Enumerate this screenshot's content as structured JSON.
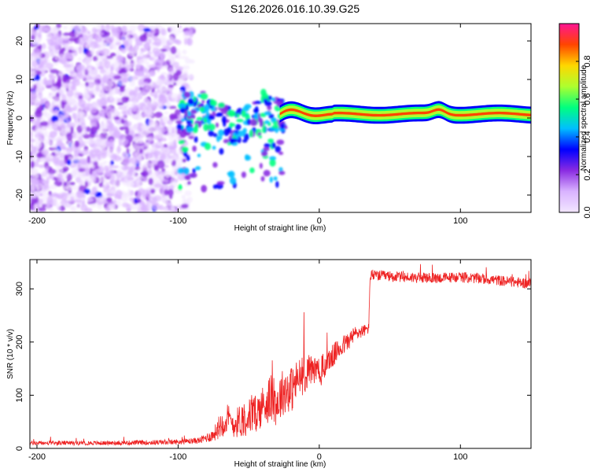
{
  "chart_data": [
    {
      "type": "heatmap",
      "title": "S126.2026.016.10.39.G25",
      "xlabel": "Height of straight line (km)",
      "ylabel": "Frequency (Hz)",
      "xlim": [
        -205,
        150
      ],
      "ylim": [
        -24.5,
        24.5
      ],
      "x_ticks": [
        -200,
        -100,
        0,
        100
      ],
      "x_tick_labels": [
        "-200",
        "-100",
        "0",
        "100"
      ],
      "y_ticks": [
        -20,
        -10,
        0,
        10,
        20
      ],
      "y_tick_labels": [
        "-20",
        "-10",
        "0",
        "10",
        "20"
      ],
      "colorbar": {
        "label": "Normalized spectral amplitude",
        "range": [
          0,
          1
        ],
        "ticks": [
          0,
          0.2,
          0.4,
          0.6,
          0.8
        ],
        "tick_labels": [
          "0.0",
          "0.2",
          "0.4",
          "0.6",
          "0.8"
        ],
        "colors": [
          "#f2e6ff",
          "#d9b3ff",
          "#8a2be2",
          "#0000ff",
          "#00bfff",
          "#00ff7f",
          "#adff2f",
          "#ffd700",
          "#ff4500",
          "#ff1493"
        ]
      },
      "regions": [
        {
          "name": "noise",
          "x_range": [
            -205,
            -90
          ],
          "freq_range": [
            -24,
            24
          ],
          "amplitude": 0.15
        },
        {
          "name": "transition",
          "x_range": [
            -100,
            -25
          ],
          "freq_range": [
            -15,
            8
          ],
          "amplitude": 0.35
        },
        {
          "name": "tone",
          "x_range": [
            -28,
            150
          ],
          "center_freq": 1,
          "amplitude": 0.9
        }
      ]
    },
    {
      "type": "line",
      "xlabel": "Height of straight line (km)",
      "ylabel": "SNR (10 * v/v)",
      "xlim": [
        -205,
        150
      ],
      "ylim": [
        0,
        355
      ],
      "x_ticks": [
        -200,
        -100,
        0,
        100
      ],
      "x_tick_labels": [
        "-200",
        "-100",
        "0",
        "100"
      ],
      "y_ticks": [
        0,
        100,
        200,
        300
      ],
      "y_tick_labels": [
        "0",
        "100",
        "200",
        "300"
      ],
      "color": "#ee2222",
      "series": [
        {
          "name": "SNR",
          "x": [
            -205,
            -150,
            -100,
            -85,
            -75,
            -70,
            -65,
            -60,
            -55,
            -50,
            -45,
            -40,
            -35,
            -30,
            -25,
            -20,
            -15,
            -10,
            -5,
            0,
            5,
            10,
            15,
            20,
            25,
            30,
            35,
            36,
            40,
            60,
            80,
            100,
            120,
            140,
            150
          ],
          "values": [
            10,
            10,
            12,
            15,
            25,
            45,
            55,
            45,
            55,
            60,
            65,
            80,
            95,
            85,
            110,
            110,
            130,
            140,
            150,
            140,
            160,
            175,
            190,
            200,
            215,
            220,
            225,
            325,
            325,
            322,
            320,
            322,
            318,
            312,
            310
          ],
          "noise_amplitude": [
            4,
            4,
            5,
            6,
            12,
            25,
            30,
            25,
            35,
            35,
            35,
            40,
            45,
            45,
            45,
            45,
            40,
            35,
            30,
            30,
            25,
            22,
            20,
            18,
            15,
            12,
            10,
            10,
            10,
            10,
            10,
            10,
            10,
            10,
            10
          ]
        }
      ]
    }
  ]
}
